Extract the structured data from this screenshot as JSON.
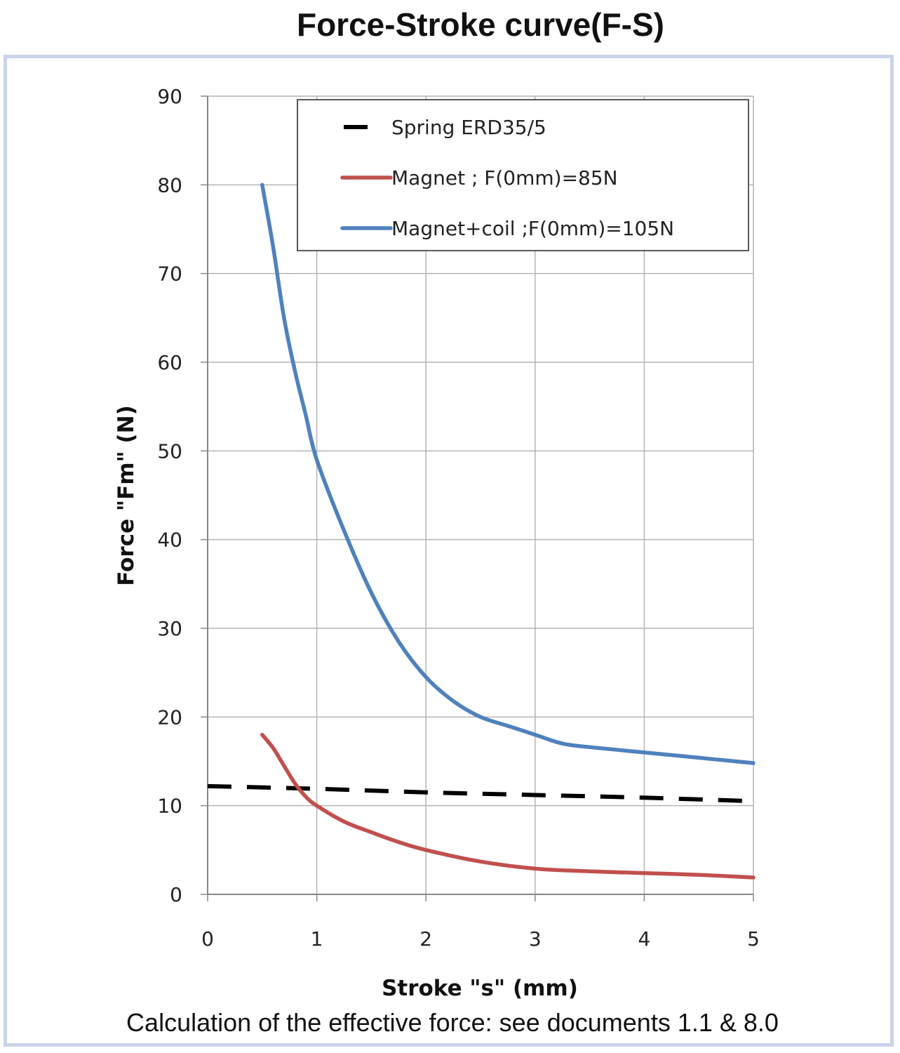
{
  "page": {
    "title": "Force-Stroke curve(F-S)",
    "footnote": "Calculation of the effective force: see documents 1.1 & 8.0"
  },
  "chart_data": {
    "type": "line",
    "title": "Force-Stroke curve(F-S)",
    "xlabel": "Stroke \"s\" (mm)",
    "ylabel": "Force \"Fm\" (N)",
    "xlim": [
      0,
      5
    ],
    "ylim": [
      0,
      90
    ],
    "xticks": [
      "0",
      "1",
      "2",
      "3",
      "4",
      "5"
    ],
    "yticks": [
      "0",
      "10",
      "20",
      "30",
      "40",
      "50",
      "60",
      "70",
      "80",
      "90"
    ],
    "grid": true,
    "legend_position": "top-right",
    "series": [
      {
        "name": "Spring ERD35/5",
        "color": "#000000",
        "style": "dashed",
        "x": [
          0,
          1,
          2,
          3,
          4,
          5
        ],
        "y": [
          12.2,
          11.9,
          11.5,
          11.2,
          10.9,
          10.5
        ]
      },
      {
        "name": "Magnet ; F(0mm)=85N",
        "color": "#c0504d",
        "style": "solid",
        "x": [
          0.5,
          0.6,
          0.7,
          0.8,
          0.9,
          1.0,
          1.25,
          1.5,
          1.75,
          2.0,
          2.5,
          3.0,
          3.5,
          4.0,
          4.5,
          5.0
        ],
        "y": [
          18,
          16.5,
          14.5,
          12.5,
          11,
          10,
          8.2,
          7,
          5.9,
          5,
          3.7,
          2.9,
          2.6,
          2.4,
          2.2,
          1.9
        ]
      },
      {
        "name": "Magnet+coil ;F(0mm)=105N",
        "color": "#4f81bd",
        "style": "solid",
        "x": [
          0.5,
          0.6,
          0.7,
          0.8,
          0.9,
          1.0,
          1.25,
          1.5,
          1.75,
          2.0,
          2.25,
          2.5,
          2.75,
          3.0,
          3.25,
          3.5,
          4.0,
          4.5,
          5.0
        ],
        "y": [
          80,
          73,
          65,
          59,
          54,
          49,
          41,
          34,
          28.5,
          24.5,
          21.8,
          20,
          19,
          18,
          17,
          16.6,
          16,
          15.4,
          14.8
        ]
      }
    ]
  }
}
